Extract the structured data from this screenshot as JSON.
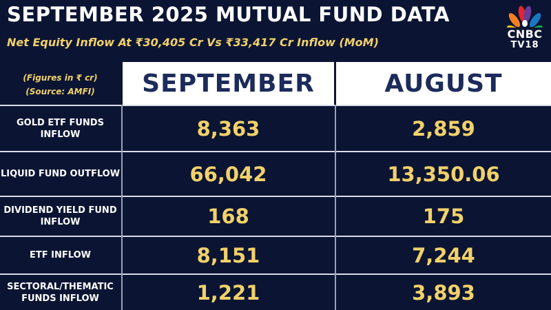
{
  "title": "SEPTEMBER 2025 MUTUAL FUND DATA",
  "subtitle": "Net Equity Inflow At ₹30,405 Cr Vs  ₹33,417 Cr Inflow (MoM)",
  "logo": {
    "brand": "CNBC",
    "channel": "TV18",
    "icon": "peacock-logo-icon",
    "colors": [
      "#e3262e",
      "#f57f20",
      "#f7c41c",
      "#19a34a",
      "#1a78c2",
      "#6a3c96"
    ]
  },
  "notes": {
    "figures": "(Figures in ₹ cr)",
    "source": "(Source: AMFI)"
  },
  "columns": [
    "SEPTEMBER",
    "AUGUST"
  ],
  "rows": [
    {
      "label": "GOLD ETF FUNDS INFLOW",
      "september": "8,363",
      "august": "2,859"
    },
    {
      "label": "LIQUID FUND OUTFLOW",
      "september": "66,042",
      "august": "13,350.06"
    },
    {
      "label": "DIVIDEND YIELD FUND INFLOW",
      "september": "168",
      "august": "175"
    },
    {
      "label": "ETF INFLOW",
      "september": "8,151",
      "august": "7,244"
    },
    {
      "label": "SECTORAL/THEMATIC FUNDS INFLOW",
      "september": "1,221",
      "august": "3,893"
    }
  ],
  "colors": {
    "background": "#0b1533",
    "accent": "#f2d16b",
    "header_bg": "#ffffff",
    "header_text": "#1c2b5a"
  }
}
